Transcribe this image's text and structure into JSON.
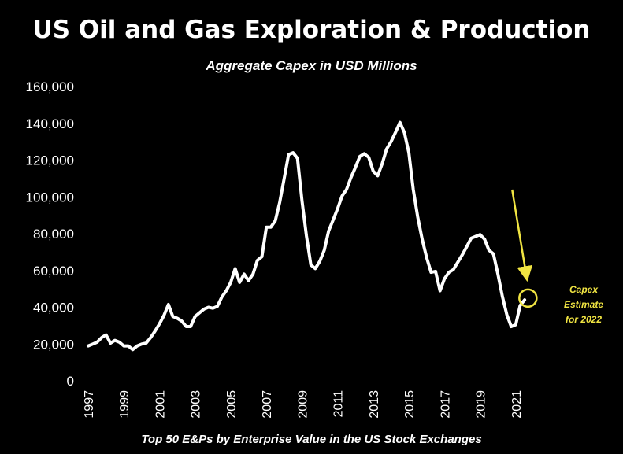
{
  "chart_data": {
    "type": "line",
    "title": "US Oil and Gas Exploration & Production",
    "subtitle": "Aggregate Capex in USD Millions",
    "footer": "Top 50 E&Ps by Enterprise Value in the US Stock Exchanges",
    "ylim": [
      0,
      160000
    ],
    "y_ticks": [
      0,
      20000,
      40000,
      60000,
      80000,
      100000,
      120000,
      140000,
      160000
    ],
    "y_tick_labels": [
      "0",
      "20,000",
      "40,000",
      "60,000",
      "80,000",
      "100,000",
      "120,000",
      "140,000",
      "160,000"
    ],
    "xlim": [
      1997,
      2023
    ],
    "x_ticks": [
      1997,
      1999,
      2001,
      2003,
      2005,
      2007,
      2009,
      2011,
      2013,
      2015,
      2017,
      2019,
      2021
    ],
    "x_tick_labels": [
      "1997",
      "1999",
      "2001",
      "2003",
      "2005",
      "2007",
      "2009",
      "2011",
      "2013",
      "2015",
      "2017",
      "2019",
      "2021"
    ],
    "grid": false,
    "series": [
      {
        "color": "#ffffff",
        "x": [
          1997.0,
          1997.25,
          1997.5,
          1997.75,
          1998.0,
          1998.25,
          1998.5,
          1998.75,
          1999.0,
          1999.25,
          1999.5,
          1999.75,
          2000.0,
          2000.25,
          2000.5,
          2000.75,
          2001.0,
          2001.25,
          2001.5,
          2001.75,
          2002.0,
          2002.25,
          2002.5,
          2002.75,
          2003.0,
          2003.25,
          2003.5,
          2003.75,
          2004.0,
          2004.25,
          2004.5,
          2004.75,
          2005.0,
          2005.25,
          2005.5,
          2005.75,
          2006.0,
          2006.25,
          2006.5,
          2006.75,
          2007.0,
          2007.25,
          2007.5,
          2007.75,
          2008.0,
          2008.25,
          2008.5,
          2008.75,
          2009.0,
          2009.25,
          2009.5,
          2009.75,
          2010.0,
          2010.25,
          2010.5,
          2010.75,
          2011.0,
          2011.25,
          2011.5,
          2011.75,
          2012.0,
          2012.25,
          2012.5,
          2012.75,
          2013.0,
          2013.25,
          2013.5,
          2013.75,
          2014.0,
          2014.25,
          2014.5,
          2014.75,
          2015.0,
          2015.25,
          2015.5,
          2015.75,
          2016.0,
          2016.25,
          2016.5,
          2016.75,
          2017.0,
          2017.25,
          2017.5,
          2017.75,
          2018.0,
          2018.25,
          2018.5,
          2018.75,
          2019.0,
          2019.25,
          2019.5,
          2019.75,
          2020.0,
          2020.25,
          2020.5,
          2020.75,
          2021.0,
          2021.25,
          2021.5
        ],
        "values": [
          19000,
          20000,
          21000,
          23500,
          25000,
          20500,
          22000,
          21000,
          19000,
          19000,
          17000,
          19000,
          20000,
          20500,
          23500,
          27000,
          31000,
          35500,
          41500,
          35000,
          34000,
          32500,
          29500,
          29500,
          35000,
          37000,
          39000,
          40000,
          39500,
          40500,
          45500,
          49000,
          53500,
          61000,
          53500,
          58000,
          54500,
          58000,
          65500,
          67500,
          83500,
          83500,
          87000,
          97000,
          110000,
          123000,
          124000,
          121000,
          98000,
          79000,
          63000,
          61000,
          65000,
          71000,
          81500,
          87500,
          93500,
          100500,
          104000,
          110500,
          116000,
          122000,
          123500,
          121500,
          114000,
          111500,
          118000,
          126000,
          130000,
          135000,
          140500,
          135000,
          124000,
          104000,
          89000,
          77000,
          67000,
          59000,
          59500,
          49000,
          55500,
          59000,
          60500,
          64500,
          68500,
          73000,
          77500,
          78500,
          79500,
          77000,
          71000,
          69000,
          58000,
          46000,
          36000,
          29500,
          30500,
          41000,
          44000
        ]
      }
    ],
    "annotation": {
      "text_lines": [
        "Capex",
        "Estimate",
        "for 2022"
      ],
      "circle_x": 2021.6,
      "circle_value": 45000,
      "arrow_from_x": 2020.8,
      "arrow_from_value": 104000,
      "arrow_to_x": 2021.6,
      "arrow_to_value": 57000,
      "color": "#f0e442"
    }
  }
}
